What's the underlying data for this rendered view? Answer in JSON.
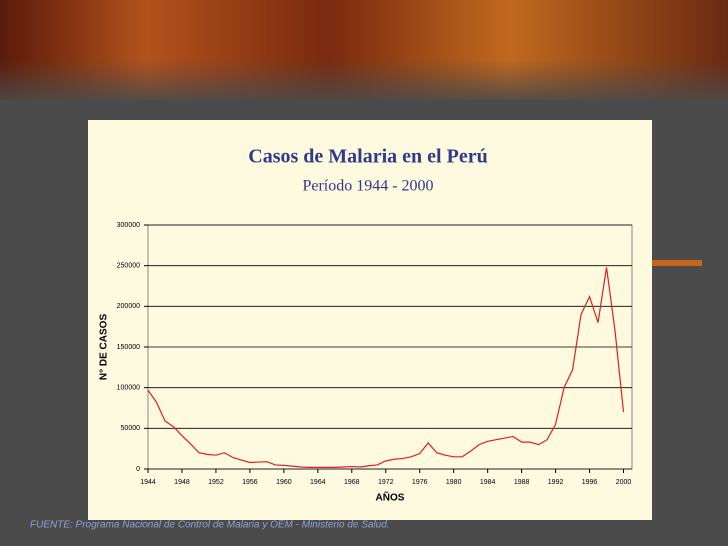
{
  "chart_data": {
    "type": "line",
    "title": "Casos de Malaria en el Perú",
    "subtitle": "Período 1944 - 2000",
    "y_label": "N° DE CASOS",
    "x_label": "AÑOS",
    "source": "FUENTE: Programa Nacional de Control de Malaria y OEM - Ministerio de Salud.",
    "x": [
      1944,
      1945,
      1946,
      1947,
      1948,
      1949,
      1950,
      1951,
      1952,
      1953,
      1954,
      1955,
      1956,
      1957,
      1958,
      1959,
      1960,
      1961,
      1962,
      1963,
      1964,
      1965,
      1966,
      1967,
      1968,
      1969,
      1970,
      1971,
      1972,
      1973,
      1974,
      1975,
      1976,
      1977,
      1978,
      1979,
      1980,
      1981,
      1982,
      1983,
      1984,
      1985,
      1986,
      1987,
      1988,
      1989,
      1990,
      1991,
      1992,
      1993,
      1994,
      1995,
      1996,
      1997,
      1998,
      1999,
      2000
    ],
    "series": [
      {
        "color": "#e02020",
        "values": [
          97000,
          82000,
          59000,
          52000,
          41000,
          31000,
          20000,
          18000,
          17000,
          20000,
          14000,
          11000,
          8000,
          8500,
          9000,
          5000,
          4500,
          3500,
          2500,
          2000,
          2000,
          2000,
          2000,
          2500,
          3000,
          2500,
          4000,
          5000,
          10000,
          12000,
          13000,
          15000,
          19000,
          32000,
          20000,
          17000,
          15000,
          15000,
          22000,
          30000,
          34000,
          36000,
          38000,
          40000,
          33000,
          33000,
          30000,
          36000,
          55000,
          100000,
          122000,
          190000,
          212000,
          180000,
          248000,
          170000,
          70000
        ]
      }
    ],
    "xlim": [
      1944,
      2001
    ],
    "xticks": [
      1944,
      1948,
      1952,
      1956,
      1960,
      1964,
      1968,
      1972,
      1976,
      1980,
      1984,
      1988,
      1992,
      1996,
      2000
    ],
    "ylim": [
      0,
      300000
    ],
    "yticks": [
      0,
      50000,
      100000,
      150000,
      200000,
      250000,
      300000
    ],
    "grid": true
  }
}
